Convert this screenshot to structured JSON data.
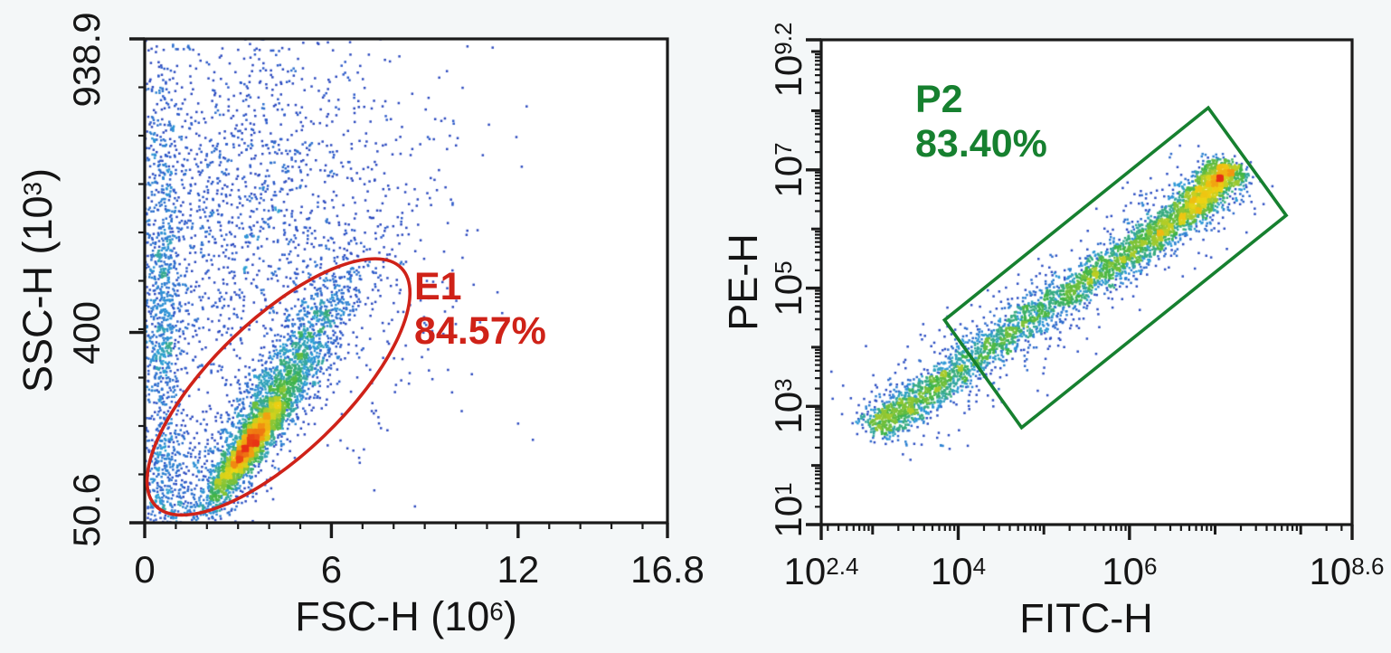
{
  "page": {
    "background": "#f4f7f8",
    "figure_kind": "flow cytometry pseudocolor dot plots"
  },
  "palette": {
    "axis_color": "#1a1a1a",
    "density_stops": [
      "#2a31a5",
      "#2d52c7",
      "#2f9fd8",
      "#3eb44a",
      "#9fca2f",
      "#ecd514",
      "#f29a12",
      "#e72f17"
    ],
    "density_gamma": 0.55
  },
  "chart_data": [
    {
      "id": "fsc-ssc",
      "type": "scatter",
      "subtype": "flow-pseudocolor-density",
      "x_axis": {
        "scale": "linear",
        "min": 0,
        "max": 16.8,
        "title": {
          "prefix": "FSC-H  (10",
          "exp": "6",
          "suffix": ")"
        },
        "major_ticks": [
          {
            "value": 0,
            "label": "0"
          },
          {
            "value": 6,
            "label": "6"
          },
          {
            "value": 12,
            "label": "12"
          },
          {
            "value": 16.8,
            "label": "16.8"
          }
        ],
        "minor_step": 1
      },
      "y_axis": {
        "scale": "linear",
        "min": 50.6,
        "max": 938.9,
        "title": {
          "prefix": "SSC-H  (10",
          "exp": "3",
          "suffix": ")"
        },
        "major_ticks": [
          {
            "value": 938.9,
            "label": "938.9"
          },
          {
            "value": 400,
            "label": "400"
          },
          {
            "value": 50.6,
            "label": "50.6"
          }
        ],
        "minor_divisions": 10
      },
      "populations": [
        {
          "name": "main-core",
          "center": [
            3.35,
            190
          ],
          "sd": [
            0.62,
            50
          ],
          "rho": 0.92,
          "n": 2100
        },
        {
          "name": "main-halo",
          "center": [
            4.2,
            280
          ],
          "sd": [
            1.3,
            115
          ],
          "rho": 0.9,
          "n": 2300
        },
        {
          "name": "debris-left-column",
          "center": [
            0.55,
            430
          ],
          "sd": [
            0.33,
            250
          ],
          "rho": 0,
          "n": 1100
        },
        {
          "name": "upper-scatter",
          "center": [
            2.7,
            615
          ],
          "sd": [
            1.9,
            200
          ],
          "rho": 0.12,
          "n": 1250
        },
        {
          "name": "upper-right-scatter",
          "center": [
            6.4,
            610
          ],
          "sd": [
            2.4,
            195
          ],
          "rho": 0,
          "n": 520
        },
        {
          "name": "bottom-left-tail",
          "center": [
            0.95,
            115
          ],
          "sd": [
            0.55,
            55
          ],
          "rho": 0.3,
          "n": 260
        }
      ],
      "gate": {
        "shape": "ellipse",
        "name": "E1",
        "percent": "84.57%",
        "color": "#cf2218",
        "center": [
          4.3,
          300
        ],
        "rx_frac": 0.327,
        "ry_frac": 0.128,
        "angle_deg": -44
      }
    },
    {
      "id": "fitc-pe",
      "type": "scatter",
      "subtype": "flow-pseudocolor-density",
      "x_axis": {
        "scale": "log",
        "min_exp": 2.4,
        "max_exp": 8.6,
        "title": {
          "prefix": "FITC-H",
          "exp": "",
          "suffix": ""
        },
        "major_ticks": [
          {
            "value": 2.4,
            "base": "10",
            "exp": "2.4"
          },
          {
            "value": 4,
            "base": "10",
            "exp": "4"
          },
          {
            "value": 6,
            "base": "10",
            "exp": "6"
          },
          {
            "value": 8.6,
            "base": "10",
            "exp": "8.6"
          }
        ],
        "decade_ticks": [
          3,
          5,
          7,
          8
        ]
      },
      "y_axis": {
        "scale": "log",
        "min_exp": 1,
        "max_exp": 9.2,
        "title": {
          "prefix": "PE-H",
          "exp": "",
          "suffix": ""
        },
        "major_ticks": [
          {
            "value": 9.2,
            "base": "10",
            "exp": "9.2"
          },
          {
            "value": 7,
            "base": "10",
            "exp": "7"
          },
          {
            "value": 5,
            "base": "10",
            "exp": "5"
          },
          {
            "value": 3,
            "base": "10",
            "exp": "3"
          },
          {
            "value": 1,
            "base": "10",
            "exp": "1"
          }
        ],
        "decade_ticks": [
          2,
          4,
          6,
          8,
          9
        ]
      },
      "bands": [
        {
          "name": "main-band",
          "spine": [
            [
              3.0,
              2.6
            ],
            [
              3.45,
              3.05
            ],
            [
              3.9,
              3.5
            ],
            [
              4.5,
              4.15
            ],
            [
              5.1,
              4.75
            ],
            [
              5.7,
              5.3
            ],
            [
              6.2,
              5.8
            ],
            [
              6.7,
              6.3
            ],
            [
              7.0,
              6.78
            ],
            [
              7.18,
              7.08
            ]
          ],
          "weights": [
            0.85,
            0.8,
            0.5,
            0.5,
            0.55,
            0.65,
            0.85,
            1.2,
            1.9,
            2.3
          ],
          "sigma_perp": 0.13,
          "n": 4300
        },
        {
          "name": "band-fringe",
          "spine": [
            [
              3.0,
              2.6
            ],
            [
              3.45,
              3.05
            ],
            [
              3.9,
              3.5
            ],
            [
              4.5,
              4.15
            ],
            [
              5.1,
              4.75
            ],
            [
              5.7,
              5.3
            ],
            [
              6.2,
              5.8
            ],
            [
              6.7,
              6.3
            ],
            [
              7.0,
              6.78
            ],
            [
              7.18,
              7.08
            ]
          ],
          "weights": [
            1,
            0.9,
            0.7,
            0.65,
            0.6,
            0.6,
            0.6,
            0.65,
            0.7,
            0.5
          ],
          "sigma_perp": 0.32,
          "n": 900
        }
      ],
      "gate": {
        "shape": "polygon",
        "name": "P2",
        "percent": "83.40%",
        "color": "#16802f",
        "corners": [
          [
            6.92,
            8.05
          ],
          [
            7.83,
            6.23
          ],
          [
            4.74,
            2.64
          ],
          [
            3.84,
            4.46
          ]
        ]
      }
    }
  ]
}
